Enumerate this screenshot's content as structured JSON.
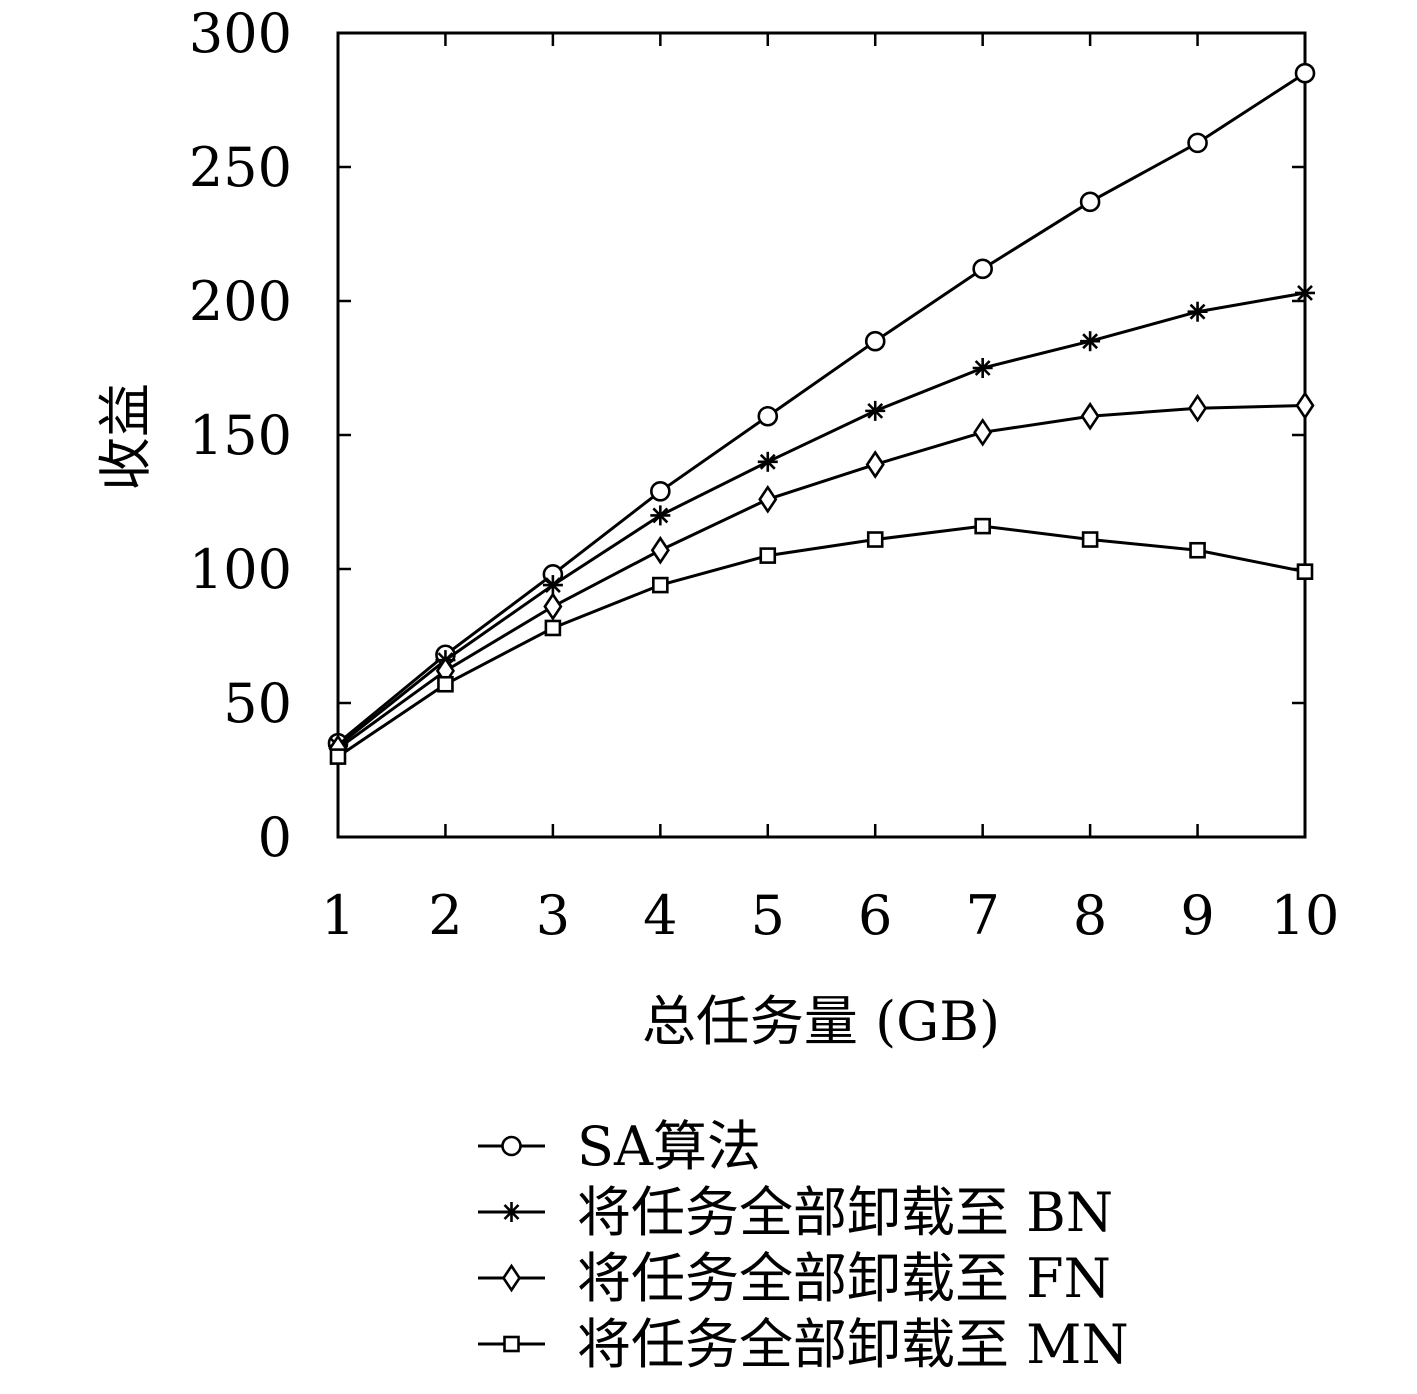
{
  "chart_data": {
    "type": "line",
    "xlabel": "总任务量 (GB)",
    "ylabel": "收益",
    "xlim": [
      1,
      10
    ],
    "ylim": [
      0,
      300
    ],
    "xticks": [
      1,
      2,
      3,
      4,
      5,
      6,
      7,
      8,
      9,
      10
    ],
    "yticks": [
      0,
      50,
      100,
      150,
      200,
      250,
      300
    ],
    "grid": false,
    "legend_position": "bottom",
    "x": [
      1,
      2,
      3,
      4,
      5,
      6,
      7,
      8,
      9,
      10
    ],
    "series": [
      {
        "name": "SA算法",
        "marker": "circle",
        "values": [
          35,
          68,
          98,
          129,
          157,
          185,
          212,
          237,
          259,
          285
        ]
      },
      {
        "name": "将任务全部卸载至 BN",
        "marker": "asterisk",
        "values": [
          34,
          66,
          94,
          120,
          140,
          159,
          175,
          185,
          196,
          203
        ]
      },
      {
        "name": "将任务全部卸载至 FN",
        "marker": "diamond",
        "values": [
          33,
          62,
          86,
          107,
          126,
          139,
          151,
          157,
          160,
          161
        ]
      },
      {
        "name": "将任务全部卸载至 MN",
        "marker": "square",
        "values": [
          30,
          57,
          78,
          94,
          105,
          111,
          116,
          111,
          107,
          99
        ]
      }
    ],
    "colors": {
      "line": "#000000",
      "marker_fill": "#ffffff"
    }
  }
}
